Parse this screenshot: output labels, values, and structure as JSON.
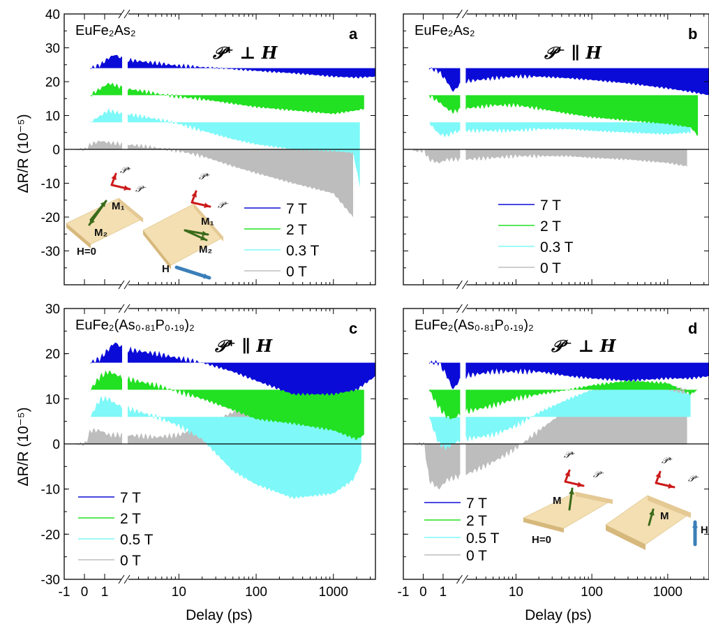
{
  "figure": {
    "x_axis_label": "Delay (ps)",
    "y_axis_label": "ΔR/R (10⁻⁵)",
    "x_tick_labels": [
      "-1",
      "0",
      "1",
      "10",
      "100",
      "1000"
    ]
  },
  "colors": {
    "7T": "#0b0bd8",
    "2T": "#22e022",
    "lowT": "#7ef8f8",
    "0T": "#bdbdbd"
  },
  "chart_data": [
    {
      "panel": "a",
      "type": "area",
      "sample": "EuFe2As2",
      "sample_display": "EuFe₂As₂",
      "polarization": "𝒫⁺ ⊥ H",
      "x_scale": "linear from -1 to 2 ps, then log to 3500 ps (axis break)",
      "ylim": [
        -40,
        40
      ],
      "y_ticks": [
        -30,
        -20,
        -10,
        0,
        10,
        20,
        30,
        40
      ],
      "legend": [
        "7 T",
        "2 T",
        "0.3 T",
        "0 T"
      ],
      "series": [
        {
          "name": "7 T",
          "offset": 24,
          "x": [
            0.3,
            0.8,
            1.2,
            1.5,
            2,
            5,
            10,
            20,
            50,
            100,
            300,
            1000,
            2000,
            3500
          ],
          "y": [
            0,
            1,
            3,
            4,
            2.5,
            1.5,
            0.7,
            0.3,
            -0.3,
            -0.8,
            -1.5,
            -2.5,
            -2.8,
            -2.5
          ]
        },
        {
          "name": "2 T",
          "offset": 16,
          "x": [
            0.3,
            0.8,
            1.2,
            1.5,
            2,
            5,
            10,
            20,
            50,
            100,
            300,
            1000,
            2000,
            2500
          ],
          "y": [
            0,
            2,
            3.5,
            3,
            2,
            0.5,
            -0.5,
            -1.2,
            -2.5,
            -3.5,
            -4.5,
            -5.5,
            -4.5,
            -4
          ]
        },
        {
          "name": "0.3 T",
          "offset": 8,
          "x": [
            0.3,
            0.8,
            1.2,
            1.5,
            2,
            5,
            10,
            20,
            50,
            100,
            300,
            1000,
            1800,
            2200
          ],
          "y": [
            0,
            2,
            3.5,
            3,
            2.5,
            1,
            -0.5,
            -2.5,
            -5,
            -6.5,
            -8,
            -8.5,
            -9,
            -19
          ]
        },
        {
          "name": "0 T",
          "offset": 0,
          "x": [
            -0.5,
            0.3,
            0.8,
            1.2,
            2,
            5,
            10,
            20,
            50,
            100,
            300,
            1000,
            1800
          ],
          "y": [
            0,
            1.5,
            2.5,
            2,
            1.5,
            0.5,
            -0.5,
            -2,
            -5,
            -7,
            -10,
            -13,
            -20
          ]
        }
      ]
    },
    {
      "panel": "b",
      "type": "area",
      "sample": "EuFe2As2",
      "sample_display": "EuFe₂As₂",
      "polarization": "𝒫⁻ ∥ H",
      "ylim": [
        -40,
        40
      ],
      "legend": [
        "7 T",
        "2 T",
        "0.3 T",
        "0 T"
      ],
      "series": [
        {
          "name": "7 T",
          "offset": 24,
          "x": [
            0.3,
            0.8,
            1.2,
            1.5,
            2,
            5,
            10,
            20,
            50,
            100,
            300,
            1000,
            2000,
            3500
          ],
          "y": [
            0,
            -1,
            -4,
            -7,
            -4,
            -3,
            -2.5,
            -2.5,
            -3,
            -3.5,
            -4.5,
            -6,
            -7,
            -8
          ]
        },
        {
          "name": "2 T",
          "offset": 16,
          "x": [
            0.3,
            0.8,
            1.2,
            1.5,
            2,
            5,
            10,
            20,
            50,
            100,
            300,
            1000,
            2000,
            2500
          ],
          "y": [
            0,
            -2,
            -4,
            -5,
            -4,
            -3,
            -3,
            -4,
            -5.5,
            -6.5,
            -7.5,
            -8.5,
            -9.5,
            -12
          ]
        },
        {
          "name": "0.3 T",
          "offset": 8,
          "x": [
            0.3,
            0.8,
            1.2,
            1.5,
            2,
            5,
            10,
            20,
            50,
            100,
            300,
            1000,
            2000
          ],
          "y": [
            0,
            -3.5,
            -4,
            -3,
            -2.5,
            -2.5,
            -2.5,
            -2,
            -2,
            -2.5,
            -3,
            -3.5,
            -3
          ]
        },
        {
          "name": "0 T",
          "offset": 0,
          "x": [
            -0.5,
            0.3,
            0.8,
            1.2,
            2,
            5,
            10,
            20,
            50,
            100,
            300,
            1000,
            1800
          ],
          "y": [
            -0.5,
            -3,
            -4,
            -3,
            -3,
            -2.5,
            -2,
            -2,
            -2,
            -2.5,
            -3,
            -4,
            -5
          ]
        }
      ]
    },
    {
      "panel": "c",
      "type": "area",
      "sample": "EuFe2(As0.81P0.19)2",
      "sample_display": "EuFe₂(As₀.₈₁P₀.₁₉)₂",
      "polarization": "𝒫⁺ ∥ H",
      "ylim": [
        -30,
        30
      ],
      "y_ticks": [
        -30,
        -20,
        -10,
        0,
        10,
        20,
        30
      ],
      "legend": [
        "7 T",
        "2 T",
        "0.5 T",
        "0 T"
      ],
      "series": [
        {
          "name": "7 T",
          "offset": 18,
          "x": [
            0.3,
            0.8,
            1.2,
            1.5,
            2,
            5,
            10,
            20,
            50,
            100,
            300,
            1000,
            2000,
            3500
          ],
          "y": [
            0,
            1,
            3,
            4.5,
            3,
            2,
            1,
            0,
            -2,
            -4,
            -7,
            -7,
            -6,
            -3
          ]
        },
        {
          "name": "2 T",
          "offset": 12,
          "x": [
            0.3,
            0.8,
            1.2,
            1.5,
            2,
            5,
            10,
            20,
            50,
            100,
            300,
            1000,
            2000,
            2500
          ],
          "y": [
            0,
            3,
            4,
            3.5,
            2.5,
            1,
            -0.5,
            -2,
            -4.5,
            -6.5,
            -7.5,
            -9,
            -11,
            -10
          ]
        },
        {
          "name": "0.5 T",
          "offset": 6,
          "x": [
            0.3,
            0.8,
            1.2,
            1.5,
            2,
            5,
            10,
            20,
            50,
            100,
            300,
            1000,
            1800,
            2300
          ],
          "y": [
            0,
            4,
            4,
            3,
            2,
            0,
            -2,
            -5,
            -12,
            -15,
            -18,
            -17,
            -14,
            -10
          ]
        },
        {
          "name": "0 T",
          "offset": 0,
          "x": [
            -0.5,
            0.3,
            0.8,
            1.2,
            2,
            5,
            10,
            20,
            50,
            100,
            300,
            1000,
            1800
          ],
          "y": [
            0,
            3,
            3,
            2,
            2,
            1.5,
            2,
            4,
            7,
            9,
            10,
            10,
            10
          ]
        }
      ]
    },
    {
      "panel": "d",
      "type": "area",
      "sample": "EuFe2(As0.81P0.19)2",
      "sample_display": "EuFe₂(As₀.₈₁P₀.₁₉)₂",
      "polarization": "𝒫⁻ ⊥ H",
      "ylim": [
        -30,
        30
      ],
      "legend": [
        "7 T",
        "2 T",
        "0.5 T",
        "0 T"
      ],
      "series": [
        {
          "name": "7 T",
          "offset": 18,
          "x": [
            0.3,
            0.8,
            1.2,
            1.5,
            2,
            5,
            10,
            20,
            50,
            100,
            300,
            1000,
            2000,
            3500
          ],
          "y": [
            0,
            0,
            -3,
            -6,
            -3,
            -2,
            -2,
            -2,
            -3,
            -3.5,
            -4,
            -3.5,
            -3.5,
            -3
          ]
        },
        {
          "name": "2 T",
          "offset": 12,
          "x": [
            0.3,
            0.8,
            1.2,
            1.5,
            2,
            5,
            10,
            20,
            50,
            100,
            300,
            1000,
            2000,
            2500
          ],
          "y": [
            0,
            -4,
            -6,
            -6.5,
            -5,
            -3.5,
            -2,
            -1,
            0,
            1,
            2,
            1.5,
            -1,
            0
          ]
        },
        {
          "name": "0.5 T",
          "offset": 6,
          "x": [
            0.3,
            0.8,
            1.2,
            1.5,
            2,
            5,
            10,
            20,
            50,
            100,
            300,
            1000,
            2000
          ],
          "y": [
            0,
            -6,
            -7,
            -6,
            -5,
            -4,
            -2,
            1,
            4,
            6,
            6.5,
            6,
            5
          ]
        },
        {
          "name": "0 T",
          "offset": 0,
          "x": [
            -0.5,
            0.3,
            0.8,
            1.2,
            2,
            5,
            10,
            20,
            50,
            100,
            300,
            1000,
            1800
          ],
          "y": [
            0,
            -8,
            -10,
            -8,
            -7,
            -4,
            -1,
            3,
            8,
            12,
            14,
            13,
            12
          ]
        }
      ]
    }
  ],
  "insets": {
    "a": {
      "p_plus": "𝒫⁺",
      "p_minus": "𝒫⁻",
      "m1": "M₁",
      "m2": "M₂",
      "h0": "H=0",
      "h": "H"
    },
    "d": {
      "p_plus": "𝒫⁺",
      "p_minus": "𝒫⁻",
      "m": "M",
      "h0": "H=0",
      "h": "H"
    }
  }
}
